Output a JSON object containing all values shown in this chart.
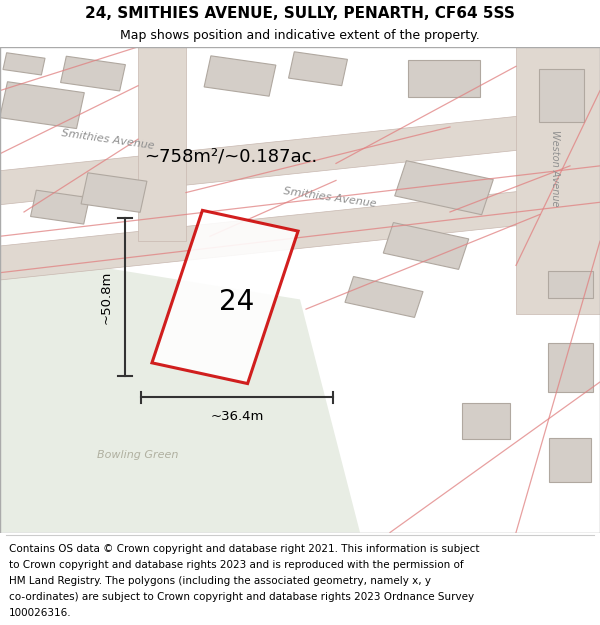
{
  "title": "24, SMITHIES AVENUE, SULLY, PENARTH, CF64 5SS",
  "subtitle": "Map shows position and indicative extent of the property.",
  "footer_lines": [
    "Contains OS data © Crown copyright and database right 2021. This information is subject",
    "to Crown copyright and database rights 2023 and is reproduced with the permission of",
    "HM Land Registry. The polygons (including the associated geometry, namely x, y",
    "co-ordinates) are subject to Crown copyright and database rights 2023 Ordnance Survey",
    "100026316."
  ],
  "map_bg": "#f5f2ee",
  "bg_green_color": "#e8ede4",
  "building_color": "#d4cec8",
  "building_outline": "#b0a8a0",
  "road_color": "#e0d8d0",
  "road_outline": "#c8b8b0",
  "plot_outline_color": "#cc0000",
  "dim_color": "#333333",
  "label_24_text": "24",
  "area_text": "~758m²/~0.187ac.",
  "dim_height_text": "~50.8m",
  "dim_width_text": "~36.4m",
  "street_label_upper": "Smithies Avenue",
  "street_label_lower": "Smithies Avenue",
  "street_label_right": "Weston Avenue",
  "bowling_green_label": "Bowling Green",
  "figsize": [
    6.0,
    6.25
  ],
  "dpi": 100,
  "title_fontsize": 11,
  "subtitle_fontsize": 9,
  "footer_fontsize": 7.5
}
